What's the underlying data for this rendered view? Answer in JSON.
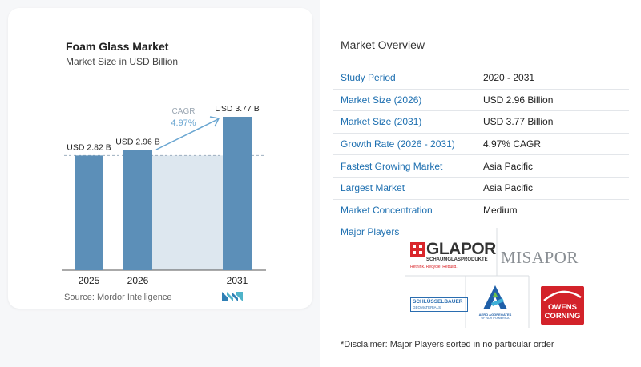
{
  "chart": {
    "title": "Foam Glass Market",
    "subtitle": "Market Size in USD Billion",
    "cagr_label": "CAGR",
    "cagr_value": "4.97%",
    "source": "Source:  Mordor Intelligence"
  },
  "chart_data": {
    "type": "bar",
    "categories": [
      "2025",
      "2026",
      "2031"
    ],
    "values": [
      2.82,
      2.96,
      3.77
    ],
    "data_labels": [
      "USD 2.82 B",
      "USD 2.96 B",
      "USD 3.77 B"
    ],
    "title": "Foam Glass Market",
    "subtitle": "Market Size in USD Billion",
    "ylim": [
      0,
      3.77
    ],
    "colors": {
      "bar": "#5c8fb8",
      "shade": "#dde7ef",
      "arrow": "#6aa6d1",
      "cagr": "#6aa6d1"
    }
  },
  "overview": {
    "title": "Market Overview",
    "rows": [
      {
        "key": "Study Period",
        "value": "2020 - 2031"
      },
      {
        "key": "Market Size (2026)",
        "value": "USD 2.96 Billion"
      },
      {
        "key": "Market Size (2031)",
        "value": "USD 3.77 Billion"
      },
      {
        "key": "Growth Rate (2026 - 2031)",
        "value": "4.97% CAGR"
      },
      {
        "key": "Fastest Growing Market",
        "value": "Asia Pacific"
      },
      {
        "key": "Largest Market",
        "value": "Asia Pacific"
      },
      {
        "key": "Market Concentration",
        "value": "Medium"
      }
    ]
  },
  "players": {
    "title": "Major Players",
    "logos": {
      "glapor": {
        "name": "GLAPOR",
        "sub": "SCHAUMGLASPRODUKTE",
        "tagline": "Rethink. Recycle. Rebuild."
      },
      "misapor": {
        "name": "MISAPOR"
      },
      "schluesselbauer": {
        "name": "SCHLÜSSELBAUER",
        "sub": "GEOMATERIALS"
      },
      "aero": {
        "name": "AERO AGGREGATES",
        "sub": "OF NORTH AMERICA"
      },
      "owens": {
        "line1": "OWENS",
        "line2": "CORNING"
      }
    },
    "disclaimer": "*Disclaimer: Major Players sorted in no particular order"
  }
}
